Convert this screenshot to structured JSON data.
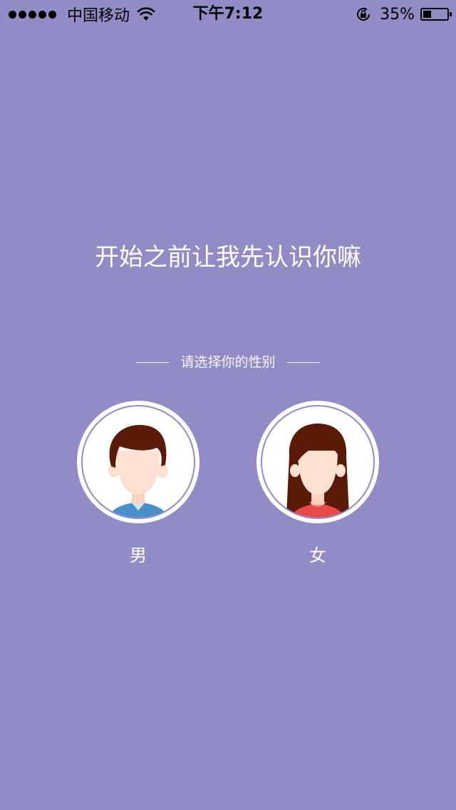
{
  "status_bar": {
    "carrier": "中国移动",
    "time": "下午7:12",
    "battery_percent": "35%",
    "battery_level": 0.35,
    "signal_bars": 5,
    "icons": [
      "signal-dots-icon",
      "wifi-icon",
      "lock-rotation-icon",
      "battery-icon"
    ]
  },
  "main": {
    "title": "开始之前让我先认识你嘛",
    "prompt": "请选择你的性别"
  },
  "genders": [
    {
      "label": "男",
      "icon": "male-avatar-icon"
    },
    {
      "label": "女",
      "icon": "female-avatar-icon"
    }
  ],
  "colors": {
    "background": "#928cc6",
    "hair": "#5a1a08",
    "skin": "#fde0d0",
    "male_shirt": "#4a90c8",
    "female_shirt": "#e84a4a"
  }
}
